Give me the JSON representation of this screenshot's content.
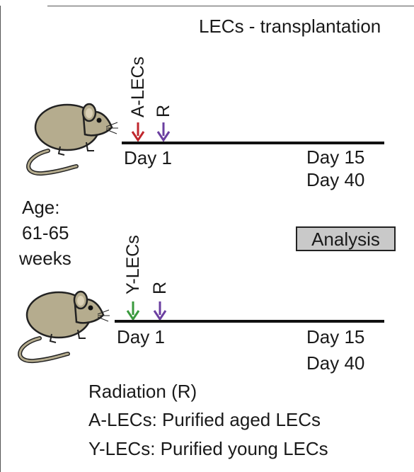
{
  "title": "LECs - transplantation",
  "age": {
    "label": "Age:",
    "range": "61-65",
    "unit": "weeks"
  },
  "analysis_label": "Analysis",
  "row_a": {
    "cell_label": "A-LECs",
    "radiation_label": "R",
    "day_start": "Day 1",
    "day_mid": "Day 15",
    "day_end": "Day 40",
    "cell_arrow_color": "#c0272d",
    "radiation_arrow_color": "#6b3fa0"
  },
  "row_y": {
    "cell_label": "Y-LECs",
    "radiation_label": "R",
    "day_start": "Day 1",
    "day_mid": "Day 15",
    "day_end": "Day 40",
    "cell_arrow_color": "#3a9a3e",
    "radiation_arrow_color": "#6b3fa0"
  },
  "legend": {
    "radiation": "Radiation (R)",
    "a_lecs": "A-LECs: Purified aged LECs",
    "y_lecs": "Y-LECs: Purified young LECs"
  }
}
